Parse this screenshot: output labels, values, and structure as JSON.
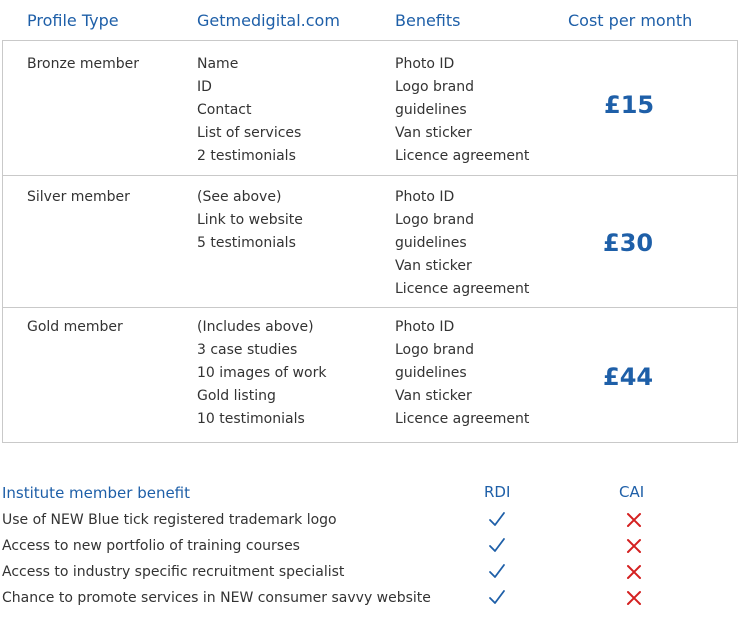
{
  "header": {
    "profile_type": "Profile Type",
    "site": "Getmedigital.com",
    "benefits": "Benefits",
    "cost": "Cost per month"
  },
  "rows": [
    {
      "type": "Bronze member",
      "features": [
        "Name",
        "ID",
        "Contact",
        "List of services",
        "2 testimonials"
      ],
      "benefits": [
        "Photo ID",
        "Logo brand",
        "guidelines",
        "Van sticker",
        "Licence agreement"
      ],
      "price": "£15"
    },
    {
      "type": "Silver member",
      "features": [
        "(See above)",
        "Link to website",
        "5 testimonials"
      ],
      "benefits": [
        "Photo ID",
        "Logo brand",
        "guidelines",
        "Van sticker",
        "Licence agreement"
      ],
      "price": "£30"
    },
    {
      "type": "Gold member",
      "features": [
        "(Includes above)",
        "3 case studies",
        "10 images of work",
        "Gold listing",
        "10 testimonials"
      ],
      "benefits": [
        "Photo ID",
        "Logo brand",
        "guidelines",
        "Van sticker",
        "Licence agreement"
      ],
      "price": "£44"
    }
  ],
  "institute": {
    "title": "Institute member benefit",
    "col_rdi": "RDI",
    "col_cai": "CAI",
    "items": [
      {
        "label": "Use of NEW Blue tick registered trademark logo",
        "rdi": "tick-icon",
        "cai": "cross-icon"
      },
      {
        "label": "Access to new portfolio of training courses",
        "rdi": "tick-icon",
        "cai": "cross-icon"
      },
      {
        "label": "Access to industry specific recruitment specialist",
        "rdi": "tick-icon",
        "cai": "cross-icon"
      },
      {
        "label": "Chance to promote services in NEW consumer savvy website",
        "rdi": "tick-icon",
        "cai": "cross-icon"
      }
    ]
  },
  "colors": {
    "accent": "#1e5fa8",
    "tick": "#1e5fa8",
    "cross": "#d42020",
    "rule": "#c9c9c9"
  }
}
